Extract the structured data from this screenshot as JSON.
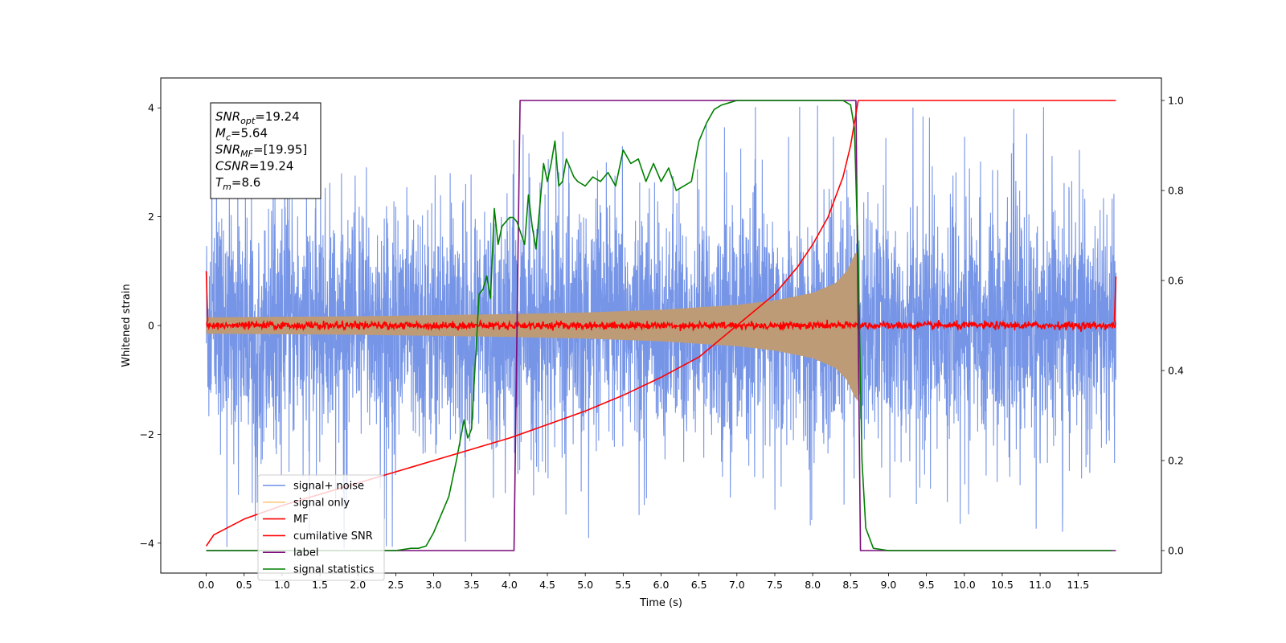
{
  "chart_data": {
    "type": "line",
    "title": "",
    "xlabel": "Time (s)",
    "ylabel": "Whitened strain",
    "ylabel_right": "",
    "xlim": [
      -0.6,
      12.6
    ],
    "ylim": [
      -4.55,
      4.55
    ],
    "ylim_right": [
      -0.05,
      1.05
    ],
    "x_ticks": [
      0.0,
      0.5,
      1.0,
      1.5,
      2.0,
      2.5,
      3.0,
      3.5,
      4.0,
      4.5,
      5.0,
      5.5,
      6.0,
      6.5,
      7.0,
      7.5,
      8.0,
      8.5,
      9.0,
      9.5,
      10.0,
      10.5,
      11.0,
      11.5
    ],
    "x_tick_labels": [
      "0.0",
      "0.5",
      "1.0",
      "1.5",
      "2.0",
      "2.5",
      "3.0",
      "3.5",
      "4.0",
      "4.5",
      "5.0",
      "5.5",
      "6.0",
      "6.5",
      "7.0",
      "7.5",
      "8.0",
      "8.5",
      "9.0",
      "9.5",
      "10.0",
      "10.5",
      "11.0",
      "11.5"
    ],
    "y_ticks": [
      -4,
      -2,
      0,
      2,
      4
    ],
    "y_tick_labels": [
      "−4",
      "−2",
      "0",
      "2",
      "4"
    ],
    "y_right_ticks": [
      0.0,
      0.2,
      0.4,
      0.6,
      0.8,
      1.0
    ],
    "y_right_tick_labels": [
      "0.0",
      "0.2",
      "0.4",
      "0.6",
      "0.8",
      "1.0"
    ],
    "grid": false,
    "legend_position": "lower-left",
    "annotation": [
      {
        "symbol": "SNR",
        "sub": "opt",
        "value": "=19.24"
      },
      {
        "symbol": "M",
        "sub": "c",
        "value": "=5.64"
      },
      {
        "symbol": "SNR",
        "sub": "MF",
        "value": "=[19.95]"
      },
      {
        "symbol": "CSNR",
        "sub": "",
        "value": "=19.24"
      },
      {
        "symbol": "T",
        "sub": "m",
        "value": "=8.6"
      }
    ],
    "series": [
      {
        "name": "signal+ noise",
        "axis": "left",
        "color": "#6f8fe6",
        "description_kind": "noise",
        "x_range": [
          0.0,
          12.0
        ],
        "mean": 0.0,
        "typical_range": [
          -2.5,
          2.5
        ],
        "extremes": [
          -4.1,
          4.1
        ]
      },
      {
        "name": "signal only",
        "axis": "left",
        "color": "#ffc77f",
        "fill_color": "#bd9b76",
        "description_kind": "chirp-envelope",
        "envelope": {
          "x": [
            0.0,
            1.0,
            2.0,
            3.0,
            4.0,
            5.0,
            6.0,
            7.0,
            7.5,
            8.0,
            8.3,
            8.45,
            8.55,
            8.6,
            8.61
          ],
          "amplitude": [
            0.15,
            0.16,
            0.17,
            0.19,
            0.21,
            0.24,
            0.29,
            0.38,
            0.46,
            0.6,
            0.78,
            1.0,
            1.3,
            1.4,
            0.0
          ]
        }
      },
      {
        "name": "MF",
        "axis": "left",
        "color": "#ff0000",
        "description_kind": "noise",
        "x_range": [
          0.0,
          12.0
        ],
        "mean": 0.0,
        "typical_range": [
          -0.1,
          0.1
        ],
        "edge_spikes": {
          "start": [
            [
              0.0,
              1.0
            ],
            [
              0.02,
              0.1
            ]
          ],
          "end": [
            [
              11.98,
              0.1
            ],
            [
              12.0,
              0.9
            ]
          ]
        }
      },
      {
        "name": "cumilative SNR",
        "axis": "right",
        "color": "#ff0000",
        "x": [
          0.0,
          0.1,
          0.5,
          1.0,
          1.5,
          2.0,
          2.5,
          3.0,
          3.5,
          4.0,
          4.5,
          5.0,
          5.5,
          6.0,
          6.5,
          7.0,
          7.5,
          7.8,
          8.0,
          8.2,
          8.4,
          8.5,
          8.55,
          8.6,
          12.0
        ],
        "y": [
          0.01,
          0.035,
          0.07,
          0.1,
          0.125,
          0.15,
          0.175,
          0.2,
          0.225,
          0.25,
          0.28,
          0.31,
          0.345,
          0.385,
          0.43,
          0.5,
          0.57,
          0.63,
          0.68,
          0.74,
          0.83,
          0.9,
          0.95,
          1.0,
          1.0
        ]
      },
      {
        "name": "label",
        "axis": "right",
        "color": "#7a0a7a",
        "x": [
          0.0,
          4.06,
          4.14,
          8.57,
          8.63,
          12.0
        ],
        "y": [
          0.0,
          0.0,
          1.0,
          1.0,
          0.0,
          0.0
        ]
      },
      {
        "name": "signal statistics",
        "axis": "right",
        "color": "#008000",
        "x": [
          0.0,
          0.5,
          1.0,
          1.5,
          2.0,
          2.5,
          2.7,
          2.8,
          2.9,
          3.0,
          3.1,
          3.2,
          3.3,
          3.4,
          3.45,
          3.5,
          3.6,
          3.65,
          3.7,
          3.75,
          3.8,
          3.85,
          3.9,
          3.95,
          4.0,
          4.05,
          4.1,
          4.2,
          4.25,
          4.3,
          4.35,
          4.45,
          4.5,
          4.55,
          4.6,
          4.65,
          4.7,
          4.75,
          4.8,
          4.85,
          4.9,
          5.0,
          5.1,
          5.2,
          5.3,
          5.4,
          5.5,
          5.6,
          5.7,
          5.8,
          5.9,
          6.0,
          6.1,
          6.2,
          6.3,
          6.4,
          6.5,
          6.6,
          6.7,
          6.8,
          6.9,
          7.0,
          7.2,
          7.4,
          7.6,
          7.8,
          8.0,
          8.2,
          8.4,
          8.45,
          8.5,
          8.55,
          8.6,
          8.65,
          8.7,
          8.8,
          9.0,
          10.0,
          11.0,
          11.5,
          11.95
        ],
        "y": [
          0.0,
          0.0,
          0.0,
          0.0,
          0.0,
          0.0,
          0.005,
          0.005,
          0.01,
          0.04,
          0.08,
          0.12,
          0.2,
          0.29,
          0.25,
          0.27,
          0.57,
          0.58,
          0.61,
          0.56,
          0.76,
          0.68,
          0.72,
          0.73,
          0.74,
          0.74,
          0.73,
          0.68,
          0.79,
          0.72,
          0.67,
          0.86,
          0.82,
          0.86,
          0.91,
          0.81,
          0.82,
          0.87,
          0.85,
          0.83,
          0.82,
          0.81,
          0.83,
          0.82,
          0.84,
          0.81,
          0.89,
          0.86,
          0.87,
          0.82,
          0.86,
          0.82,
          0.85,
          0.8,
          0.81,
          0.82,
          0.91,
          0.95,
          0.98,
          0.99,
          0.995,
          1.0,
          1.0,
          1.0,
          1.0,
          1.0,
          1.0,
          1.0,
          1.0,
          0.995,
          0.99,
          0.94,
          0.65,
          0.2,
          0.05,
          0.005,
          0.0,
          0.0,
          0.0,
          0.0,
          0.0
        ]
      }
    ]
  }
}
